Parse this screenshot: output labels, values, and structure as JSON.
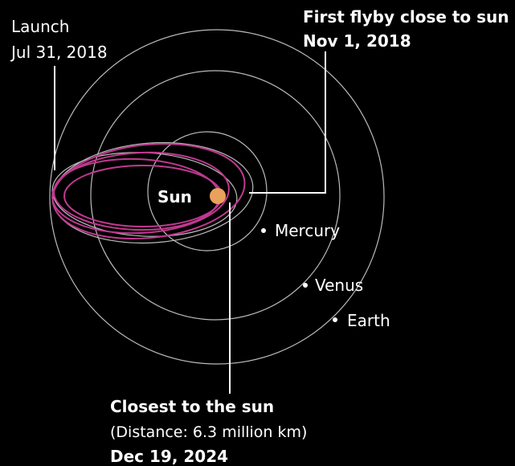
{
  "launch": {
    "title": "Launch",
    "date": "Jul 31, 2018"
  },
  "first_flyby": {
    "title": "First flyby close to sun",
    "date": "Nov 1, 2018"
  },
  "bodies": {
    "sun": "Sun",
    "mercury": "Mercury",
    "venus": "Venus",
    "earth": "Earth"
  },
  "closest": {
    "title": "Closest to the sun",
    "distance": "(Distance: 6.3 million km)",
    "date": "Dec 19, 2024"
  }
}
